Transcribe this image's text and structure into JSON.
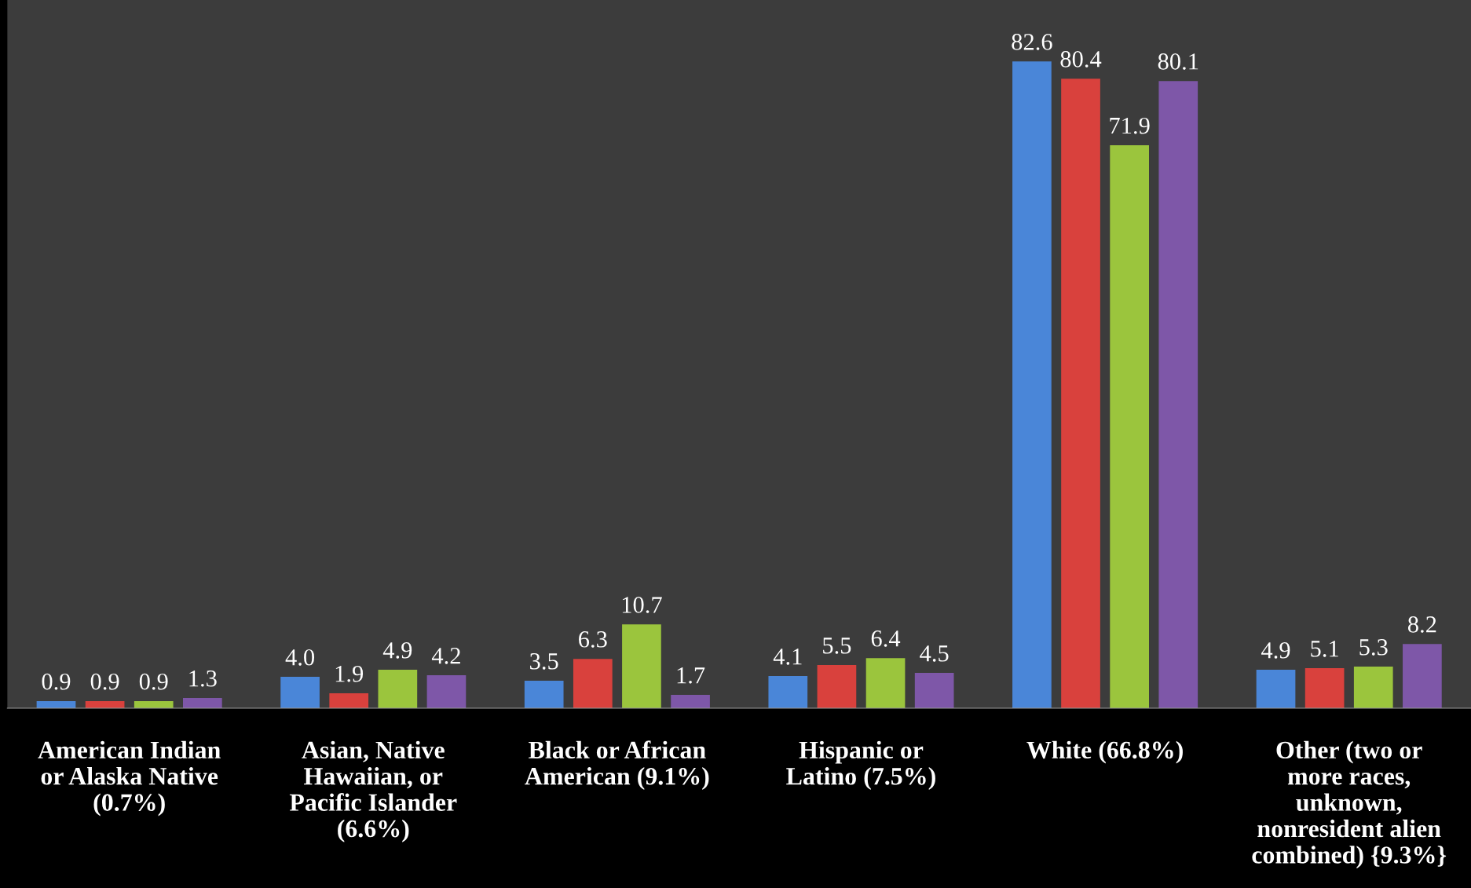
{
  "chart_data": {
    "type": "bar",
    "categories": [
      "American Indian or Alaska Native (0.7%)",
      "Asian, Native Hawaiian, or Pacific Islander (6.6%)",
      "Black or African American (9.1%)",
      "Hispanic or Latino (7.5%)",
      "White (66.8%)",
      "Other (two or more races, unknown, nonresident alien combined) {9.3%}"
    ],
    "series": [
      {
        "color": "#4a86d8",
        "values": [
          0.9,
          4.0,
          3.5,
          4.1,
          82.6,
          4.9
        ],
        "value_labels": [
          "0.9",
          "4.0",
          "3.5",
          "4.1",
          "82.6",
          "4.9"
        ]
      },
      {
        "color": "#d9413d",
        "values": [
          0.9,
          1.9,
          6.3,
          5.5,
          80.4,
          5.1
        ],
        "value_labels": [
          "0.9",
          "1.9",
          "6.3",
          "5.5",
          "80.4",
          "5.1"
        ]
      },
      {
        "color": "#9bc53d",
        "values": [
          0.9,
          4.9,
          10.7,
          6.4,
          71.9,
          5.3
        ],
        "value_labels": [
          "0.9",
          "4.9",
          "10.7",
          "6.4",
          "71.9",
          "5.3"
        ]
      },
      {
        "color": "#7e57a8",
        "values": [
          1.3,
          4.2,
          1.7,
          4.5,
          80.1,
          8.2
        ],
        "value_labels": [
          "1.3",
          "4.2",
          "1.7",
          "4.5",
          "80.1",
          "8.2"
        ]
      }
    ],
    "data_labels": true,
    "grid": false,
    "legend": false,
    "tick_labels": "x"
  }
}
